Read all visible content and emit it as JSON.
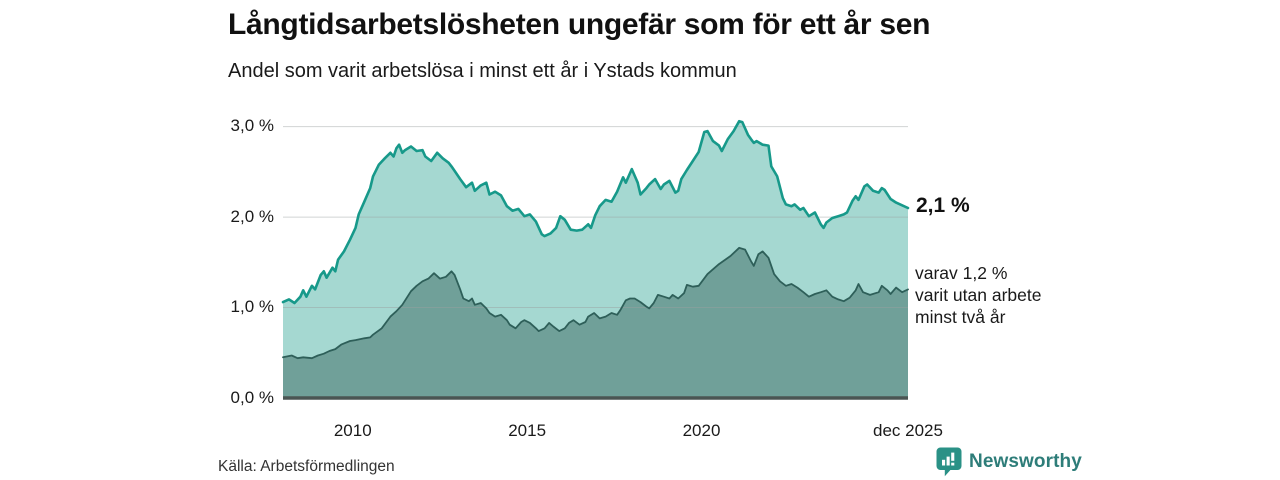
{
  "header": {
    "title": "Långtidsarbetslösheten ungefär som för ett år sen",
    "subtitle": "Andel som varit arbetslösa i minst ett år i Ystads kommun"
  },
  "annotations": {
    "upper_value": "2,1 %",
    "lower_lines": [
      "varav 1,2 %",
      "varit utan arbete",
      "minst två år"
    ]
  },
  "footer": {
    "source": "Källa: Arbetsförmedlingen",
    "brand": "Newsworthy"
  },
  "colors": {
    "line_over_1yr": "#17998a",
    "fill_over_1yr": "#a5d8d1",
    "line_over_2yr": "#2e5f59",
    "fill_over_2yr": "#70a099",
    "baseline": "#4a5553",
    "gridline": "#9aa0a0",
    "brand_icon": "#2a9186",
    "brand_text": "#2e7d79"
  },
  "chart_data": {
    "type": "area",
    "title": "Långtidsarbetslösheten ungefär som för ett år sen",
    "subtitle": "Andel som varit arbetslösa i minst ett år i Ystads kommun",
    "xlabel": "",
    "ylabel": "",
    "y_unit": "%",
    "grid": "horizontal",
    "legend_position": "right-annotations",
    "xlim": [
      2008.0,
      2025.92
    ],
    "ylim": [
      0,
      3.0
    ],
    "x_ticks": [
      {
        "value": 2010,
        "label": "2010"
      },
      {
        "value": 2015,
        "label": "2015"
      },
      {
        "value": 2020,
        "label": "2020"
      },
      {
        "value": 2025.92,
        "label": "dec 2025"
      }
    ],
    "y_ticks": [
      {
        "value": 0,
        "label": "0,0 %"
      },
      {
        "value": 1,
        "label": "1,0 %"
      },
      {
        "value": 2,
        "label": "2,0 %"
      },
      {
        "value": 3,
        "label": "3,0 %"
      }
    ],
    "series": [
      {
        "name": "arbetslösa minst ett år",
        "end_label": "2,1 %",
        "latest_value": 2.1,
        "stroke": "#17998a",
        "fill": "#a5d8d1",
        "points": [
          [
            2008.0,
            1.06
          ],
          [
            2008.17,
            1.09
          ],
          [
            2008.33,
            1.05
          ],
          [
            2008.5,
            1.12
          ],
          [
            2008.58,
            1.19
          ],
          [
            2008.67,
            1.12
          ],
          [
            2008.83,
            1.24
          ],
          [
            2008.92,
            1.2
          ],
          [
            2009.08,
            1.36
          ],
          [
            2009.17,
            1.4
          ],
          [
            2009.25,
            1.33
          ],
          [
            2009.42,
            1.44
          ],
          [
            2009.5,
            1.4
          ],
          [
            2009.58,
            1.53
          ],
          [
            2009.75,
            1.62
          ],
          [
            2009.92,
            1.75
          ],
          [
            2010.08,
            1.88
          ],
          [
            2010.17,
            2.03
          ],
          [
            2010.33,
            2.17
          ],
          [
            2010.5,
            2.32
          ],
          [
            2010.58,
            2.45
          ],
          [
            2010.75,
            2.58
          ],
          [
            2010.92,
            2.65
          ],
          [
            2011.08,
            2.71
          ],
          [
            2011.17,
            2.67
          ],
          [
            2011.25,
            2.76
          ],
          [
            2011.33,
            2.8
          ],
          [
            2011.42,
            2.71
          ],
          [
            2011.5,
            2.74
          ],
          [
            2011.67,
            2.78
          ],
          [
            2011.83,
            2.73
          ],
          [
            2012.0,
            2.74
          ],
          [
            2012.08,
            2.67
          ],
          [
            2012.25,
            2.62
          ],
          [
            2012.42,
            2.71
          ],
          [
            2012.58,
            2.65
          ],
          [
            2012.75,
            2.6
          ],
          [
            2012.83,
            2.56
          ],
          [
            2012.92,
            2.51
          ],
          [
            2013.08,
            2.42
          ],
          [
            2013.25,
            2.33
          ],
          [
            2013.42,
            2.38
          ],
          [
            2013.5,
            2.29
          ],
          [
            2013.67,
            2.35
          ],
          [
            2013.83,
            2.38
          ],
          [
            2013.92,
            2.25
          ],
          [
            2014.08,
            2.28
          ],
          [
            2014.25,
            2.24
          ],
          [
            2014.42,
            2.12
          ],
          [
            2014.58,
            2.07
          ],
          [
            2014.75,
            2.09
          ],
          [
            2014.92,
            2.01
          ],
          [
            2015.08,
            2.03
          ],
          [
            2015.25,
            1.95
          ],
          [
            2015.42,
            1.81
          ],
          [
            2015.5,
            1.79
          ],
          [
            2015.67,
            1.82
          ],
          [
            2015.83,
            1.88
          ],
          [
            2015.95,
            2.01
          ],
          [
            2016.08,
            1.97
          ],
          [
            2016.25,
            1.86
          ],
          [
            2016.42,
            1.85
          ],
          [
            2016.58,
            1.86
          ],
          [
            2016.75,
            1.92
          ],
          [
            2016.83,
            1.88
          ],
          [
            2016.95,
            2.02
          ],
          [
            2017.08,
            2.12
          ],
          [
            2017.25,
            2.19
          ],
          [
            2017.42,
            2.17
          ],
          [
            2017.58,
            2.28
          ],
          [
            2017.75,
            2.44
          ],
          [
            2017.83,
            2.38
          ],
          [
            2018.0,
            2.53
          ],
          [
            2018.17,
            2.38
          ],
          [
            2018.25,
            2.25
          ],
          [
            2018.42,
            2.32
          ],
          [
            2018.5,
            2.36
          ],
          [
            2018.67,
            2.42
          ],
          [
            2018.83,
            2.31
          ],
          [
            2018.92,
            2.36
          ],
          [
            2019.08,
            2.4
          ],
          [
            2019.25,
            2.27
          ],
          [
            2019.33,
            2.29
          ],
          [
            2019.42,
            2.42
          ],
          [
            2019.58,
            2.52
          ],
          [
            2019.75,
            2.62
          ],
          [
            2019.92,
            2.72
          ],
          [
            2020.08,
            2.94
          ],
          [
            2020.17,
            2.95
          ],
          [
            2020.33,
            2.84
          ],
          [
            2020.5,
            2.79
          ],
          [
            2020.58,
            2.73
          ],
          [
            2020.75,
            2.86
          ],
          [
            2020.92,
            2.95
          ],
          [
            2021.08,
            3.06
          ],
          [
            2021.17,
            3.05
          ],
          [
            2021.25,
            2.98
          ],
          [
            2021.33,
            2.91
          ],
          [
            2021.42,
            2.86
          ],
          [
            2021.5,
            2.82
          ],
          [
            2021.58,
            2.84
          ],
          [
            2021.75,
            2.8
          ],
          [
            2021.92,
            2.79
          ],
          [
            2022.0,
            2.56
          ],
          [
            2022.17,
            2.45
          ],
          [
            2022.33,
            2.21
          ],
          [
            2022.42,
            2.14
          ],
          [
            2022.58,
            2.12
          ],
          [
            2022.67,
            2.14
          ],
          [
            2022.83,
            2.08
          ],
          [
            2022.92,
            2.1
          ],
          [
            2023.08,
            2.01
          ],
          [
            2023.25,
            2.05
          ],
          [
            2023.42,
            1.92
          ],
          [
            2023.5,
            1.88
          ],
          [
            2023.58,
            1.94
          ],
          [
            2023.75,
            1.99
          ],
          [
            2023.92,
            2.01
          ],
          [
            2024.08,
            2.03
          ],
          [
            2024.17,
            2.05
          ],
          [
            2024.33,
            2.18
          ],
          [
            2024.42,
            2.23
          ],
          [
            2024.5,
            2.19
          ],
          [
            2024.67,
            2.34
          ],
          [
            2024.75,
            2.36
          ],
          [
            2024.92,
            2.29
          ],
          [
            2025.08,
            2.27
          ],
          [
            2025.17,
            2.32
          ],
          [
            2025.25,
            2.3
          ],
          [
            2025.42,
            2.2
          ],
          [
            2025.58,
            2.16
          ],
          [
            2025.75,
            2.13
          ],
          [
            2025.92,
            2.1
          ]
        ]
      },
      {
        "name": "varav varit utan arbete minst två år",
        "end_label": "varav 1,2 % varit utan arbete minst två år",
        "latest_value": 1.2,
        "stroke": "#2e5f59",
        "fill": "#70a099",
        "points": [
          [
            2008.0,
            0.45
          ],
          [
            2008.25,
            0.47
          ],
          [
            2008.42,
            0.44
          ],
          [
            2008.58,
            0.45
          ],
          [
            2008.83,
            0.44
          ],
          [
            2009.0,
            0.47
          ],
          [
            2009.17,
            0.49
          ],
          [
            2009.33,
            0.52
          ],
          [
            2009.5,
            0.54
          ],
          [
            2009.67,
            0.59
          ],
          [
            2009.92,
            0.63
          ],
          [
            2010.08,
            0.64
          ],
          [
            2010.33,
            0.66
          ],
          [
            2010.5,
            0.67
          ],
          [
            2010.58,
            0.7
          ],
          [
            2010.83,
            0.77
          ],
          [
            2011.08,
            0.9
          ],
          [
            2011.25,
            0.96
          ],
          [
            2011.42,
            1.03
          ],
          [
            2011.67,
            1.18
          ],
          [
            2011.83,
            1.24
          ],
          [
            2012.0,
            1.29
          ],
          [
            2012.17,
            1.32
          ],
          [
            2012.33,
            1.38
          ],
          [
            2012.5,
            1.32
          ],
          [
            2012.67,
            1.34
          ],
          [
            2012.83,
            1.4
          ],
          [
            2012.92,
            1.36
          ],
          [
            2013.08,
            1.2
          ],
          [
            2013.17,
            1.1
          ],
          [
            2013.33,
            1.07
          ],
          [
            2013.42,
            1.1
          ],
          [
            2013.5,
            1.03
          ],
          [
            2013.67,
            1.05
          ],
          [
            2013.83,
            0.99
          ],
          [
            2013.92,
            0.94
          ],
          [
            2014.08,
            0.9
          ],
          [
            2014.25,
            0.92
          ],
          [
            2014.42,
            0.86
          ],
          [
            2014.5,
            0.81
          ],
          [
            2014.67,
            0.77
          ],
          [
            2014.83,
            0.84
          ],
          [
            2014.92,
            0.86
          ],
          [
            2015.08,
            0.83
          ],
          [
            2015.25,
            0.77
          ],
          [
            2015.33,
            0.74
          ],
          [
            2015.5,
            0.77
          ],
          [
            2015.63,
            0.83
          ],
          [
            2015.75,
            0.79
          ],
          [
            2015.92,
            0.74
          ],
          [
            2016.08,
            0.77
          ],
          [
            2016.2,
            0.83
          ],
          [
            2016.33,
            0.86
          ],
          [
            2016.5,
            0.81
          ],
          [
            2016.67,
            0.84
          ],
          [
            2016.75,
            0.9
          ],
          [
            2016.92,
            0.94
          ],
          [
            2017.08,
            0.88
          ],
          [
            2017.25,
            0.9
          ],
          [
            2017.42,
            0.94
          ],
          [
            2017.58,
            0.92
          ],
          [
            2017.67,
            0.97
          ],
          [
            2017.83,
            1.08
          ],
          [
            2017.95,
            1.1
          ],
          [
            2018.08,
            1.1
          ],
          [
            2018.25,
            1.06
          ],
          [
            2018.42,
            1.01
          ],
          [
            2018.5,
            0.99
          ],
          [
            2018.63,
            1.05
          ],
          [
            2018.75,
            1.14
          ],
          [
            2018.92,
            1.12
          ],
          [
            2019.08,
            1.1
          ],
          [
            2019.17,
            1.14
          ],
          [
            2019.33,
            1.1
          ],
          [
            2019.5,
            1.16
          ],
          [
            2019.58,
            1.25
          ],
          [
            2019.75,
            1.23
          ],
          [
            2019.92,
            1.24
          ],
          [
            2020.17,
            1.37
          ],
          [
            2020.5,
            1.48
          ],
          [
            2020.83,
            1.57
          ],
          [
            2021.08,
            1.66
          ],
          [
            2021.25,
            1.64
          ],
          [
            2021.42,
            1.51
          ],
          [
            2021.5,
            1.46
          ],
          [
            2021.63,
            1.59
          ],
          [
            2021.75,
            1.62
          ],
          [
            2021.92,
            1.55
          ],
          [
            2022.08,
            1.37
          ],
          [
            2022.25,
            1.29
          ],
          [
            2022.42,
            1.24
          ],
          [
            2022.58,
            1.26
          ],
          [
            2022.75,
            1.22
          ],
          [
            2022.92,
            1.17
          ],
          [
            2023.08,
            1.12
          ],
          [
            2023.25,
            1.15
          ],
          [
            2023.42,
            1.17
          ],
          [
            2023.58,
            1.19
          ],
          [
            2023.75,
            1.12
          ],
          [
            2023.92,
            1.09
          ],
          [
            2024.08,
            1.07
          ],
          [
            2024.25,
            1.11
          ],
          [
            2024.42,
            1.19
          ],
          [
            2024.5,
            1.26
          ],
          [
            2024.63,
            1.17
          ],
          [
            2024.83,
            1.14
          ],
          [
            2025.08,
            1.17
          ],
          [
            2025.17,
            1.24
          ],
          [
            2025.33,
            1.19
          ],
          [
            2025.42,
            1.15
          ],
          [
            2025.58,
            1.22
          ],
          [
            2025.75,
            1.17
          ],
          [
            2025.92,
            1.2
          ]
        ]
      }
    ]
  }
}
